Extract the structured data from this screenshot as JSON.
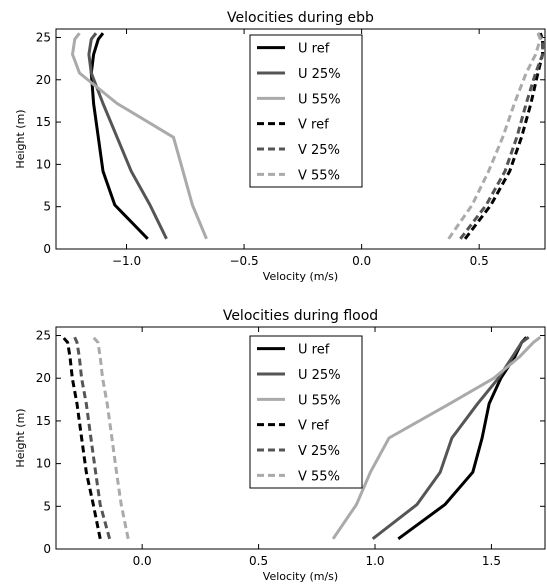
{
  "chart_data": [
    {
      "type": "line",
      "title": "Velocities during ebb",
      "xlabel": "Velocity (m/s)",
      "ylabel": "Height (m)",
      "xlim": [
        -1.3,
        0.78
      ],
      "ylim": [
        0,
        26
      ],
      "xticks": [
        -1.0,
        -0.5,
        0.0,
        0.5
      ],
      "xtick_labels": [
        "−1.0",
        "−0.5",
        "0.0",
        "0.5"
      ],
      "yticks": [
        0,
        5,
        10,
        15,
        20,
        25
      ],
      "ytick_labels": [
        "0",
        "5",
        "10",
        "15",
        "20",
        "25"
      ],
      "legend_position": "top-center",
      "series": [
        {
          "name": "U ref",
          "color": "#000000",
          "dash": "solid",
          "points": [
            [
              -0.91,
              1.2
            ],
            [
              -1.05,
              5.2
            ],
            [
              -1.1,
              9.2
            ],
            [
              -1.12,
              13.2
            ],
            [
              -1.14,
              17.2
            ],
            [
              -1.15,
              20.8
            ],
            [
              -1.14,
              23.0
            ],
            [
              -1.12,
              24.8
            ],
            [
              -1.1,
              25.5
            ]
          ]
        },
        {
          "name": "U 25%",
          "color": "#555555",
          "dash": "solid",
          "points": [
            [
              -0.83,
              1.2
            ],
            [
              -0.9,
              5.2
            ],
            [
              -0.98,
              9.2
            ],
            [
              -1.04,
              13.2
            ],
            [
              -1.1,
              17.2
            ],
            [
              -1.15,
              20.8
            ],
            [
              -1.16,
              23.0
            ],
            [
              -1.15,
              24.8
            ],
            [
              -1.13,
              25.5
            ]
          ]
        },
        {
          "name": "U 55%",
          "color": "#aaaaaa",
          "dash": "solid",
          "points": [
            [
              -0.66,
              1.2
            ],
            [
              -0.72,
              5.2
            ],
            [
              -0.76,
              9.2
            ],
            [
              -0.8,
              13.2
            ],
            [
              -1.04,
              17.2
            ],
            [
              -1.2,
              20.8
            ],
            [
              -1.23,
              23.0
            ],
            [
              -1.22,
              24.8
            ],
            [
              -1.2,
              25.5
            ]
          ]
        },
        {
          "name": "V ref",
          "color": "#000000",
          "dash": "dashed",
          "points": [
            [
              0.44,
              1.2
            ],
            [
              0.55,
              5.2
            ],
            [
              0.63,
              9.2
            ],
            [
              0.68,
              13.2
            ],
            [
              0.72,
              17.2
            ],
            [
              0.75,
              20.8
            ],
            [
              0.77,
              23.0
            ],
            [
              0.77,
              24.8
            ],
            [
              0.76,
              25.5
            ]
          ]
        },
        {
          "name": "V 25%",
          "color": "#555555",
          "dash": "dashed",
          "points": [
            [
              0.42,
              1.2
            ],
            [
              0.53,
              5.2
            ],
            [
              0.61,
              9.2
            ],
            [
              0.66,
              13.2
            ],
            [
              0.7,
              17.2
            ],
            [
              0.74,
              20.8
            ],
            [
              0.77,
              23.0
            ],
            [
              0.77,
              24.8
            ],
            [
              0.75,
              25.5
            ]
          ]
        },
        {
          "name": "V 55%",
          "color": "#aaaaaa",
          "dash": "dashed",
          "points": [
            [
              0.37,
              1.2
            ],
            [
              0.47,
              5.2
            ],
            [
              0.54,
              9.2
            ],
            [
              0.6,
              13.2
            ],
            [
              0.65,
              17.2
            ],
            [
              0.7,
              20.8
            ],
            [
              0.74,
              23.0
            ],
            [
              0.76,
              24.8
            ],
            [
              0.75,
              25.5
            ]
          ]
        }
      ]
    },
    {
      "type": "line",
      "title": "Velocities during flood",
      "xlabel": "Velocity (m/s)",
      "ylabel": "Height (m)",
      "xlim": [
        -0.37,
        1.73
      ],
      "ylim": [
        0,
        26
      ],
      "xticks": [
        0.0,
        0.5,
        1.0,
        1.5
      ],
      "xtick_labels": [
        "0.0",
        "0.5",
        "1.0",
        "1.5"
      ],
      "yticks": [
        0,
        5,
        10,
        15,
        20,
        25
      ],
      "ytick_labels": [
        "0",
        "5",
        "10",
        "15",
        "20",
        "25"
      ],
      "legend_position": "top-center",
      "series": [
        {
          "name": "U ref",
          "color": "#000000",
          "dash": "solid",
          "points": [
            [
              1.1,
              1.2
            ],
            [
              1.3,
              5.2
            ],
            [
              1.42,
              9.0
            ],
            [
              1.46,
              13.0
            ],
            [
              1.49,
              17.0
            ],
            [
              1.54,
              20.0
            ],
            [
              1.6,
              22.5
            ],
            [
              1.63,
              24.2
            ],
            [
              1.65,
              24.8
            ]
          ]
        },
        {
          "name": "U 25%",
          "color": "#555555",
          "dash": "solid",
          "points": [
            [
              0.99,
              1.2
            ],
            [
              1.18,
              5.2
            ],
            [
              1.28,
              9.0
            ],
            [
              1.33,
              13.0
            ],
            [
              1.44,
              17.0
            ],
            [
              1.53,
              20.0
            ],
            [
              1.59,
              22.5
            ],
            [
              1.63,
              24.2
            ],
            [
              1.66,
              24.8
            ]
          ]
        },
        {
          "name": "U 55%",
          "color": "#aaaaaa",
          "dash": "solid",
          "points": [
            [
              0.82,
              1.2
            ],
            [
              0.92,
              5.2
            ],
            [
              0.98,
              9.0
            ],
            [
              1.06,
              13.0
            ],
            [
              1.32,
              17.0
            ],
            [
              1.51,
              20.0
            ],
            [
              1.62,
              22.5
            ],
            [
              1.68,
              24.2
            ],
            [
              1.71,
              24.8
            ]
          ]
        },
        {
          "name": "V ref",
          "color": "#000000",
          "dash": "dashed",
          "points": [
            [
              -0.18,
              1.2
            ],
            [
              -0.21,
              5.2
            ],
            [
              -0.24,
              9.0
            ],
            [
              -0.26,
              13.0
            ],
            [
              -0.28,
              17.0
            ],
            [
              -0.3,
              20.0
            ],
            [
              -0.31,
              22.5
            ],
            [
              -0.32,
              24.2
            ],
            [
              -0.34,
              24.8
            ]
          ]
        },
        {
          "name": "V 25%",
          "color": "#555555",
          "dash": "dashed",
          "points": [
            [
              -0.14,
              1.2
            ],
            [
              -0.18,
              5.2
            ],
            [
              -0.2,
              9.0
            ],
            [
              -0.22,
              13.0
            ],
            [
              -0.24,
              17.0
            ],
            [
              -0.26,
              20.0
            ],
            [
              -0.27,
              22.5
            ],
            [
              -0.28,
              24.2
            ],
            [
              -0.29,
              24.8
            ]
          ]
        },
        {
          "name": "V 55%",
          "color": "#aaaaaa",
          "dash": "dashed",
          "points": [
            [
              -0.06,
              1.2
            ],
            [
              -0.09,
              5.2
            ],
            [
              -0.11,
              9.0
            ],
            [
              -0.13,
              13.0
            ],
            [
              -0.15,
              17.0
            ],
            [
              -0.17,
              20.0
            ],
            [
              -0.18,
              22.5
            ],
            [
              -0.19,
              24.2
            ],
            [
              -0.21,
              24.8
            ]
          ]
        }
      ]
    }
  ]
}
